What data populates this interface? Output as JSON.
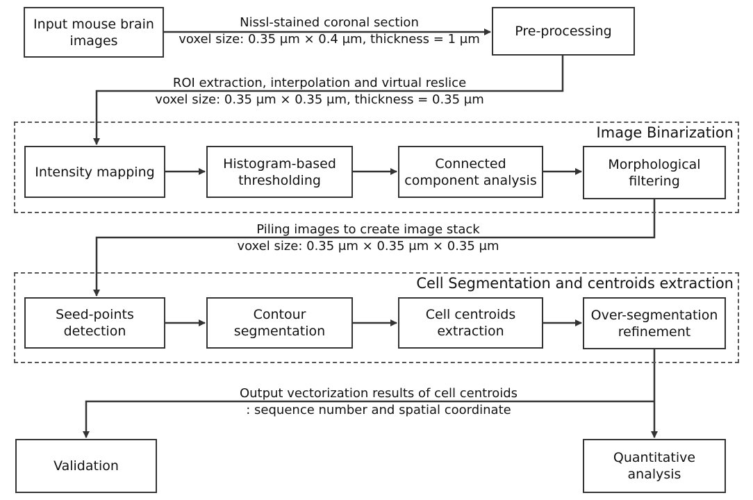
{
  "nodes": {
    "input": [
      "Input mouse brain",
      "images"
    ],
    "preprocessing": [
      "Pre-processing"
    ],
    "intensity": [
      "Intensity mapping"
    ],
    "histogram": [
      "Histogram-based",
      "thresholding"
    ],
    "connected": [
      "Connected",
      "component analysis"
    ],
    "morph": [
      "Morphological",
      "filtering"
    ],
    "seed": [
      "Seed-points",
      "detection"
    ],
    "contour": [
      "Contour",
      "segmentation"
    ],
    "centroids": [
      "Cell centroids",
      "extraction"
    ],
    "overseg": [
      "Over-segmentation",
      "refinement"
    ],
    "validation": [
      "Validation"
    ],
    "quantitative": [
      "Quantitative",
      "analysis"
    ]
  },
  "groups": {
    "binarization": "Image Binarization",
    "segmentation": "Cell Segmentation and centroids extraction"
  },
  "edge_labels": {
    "input_to_pre": [
      "Nissl-stained  coronal section",
      "voxel size: 0.35 μm × 0.4 μm, thickness = 1 μm"
    ],
    "pre_to_binarization": [
      "ROI extraction, interpolation and virtual reslice",
      "voxel size: 0.35 μm × 0.35 μm, thickness = 0.35 μm"
    ],
    "binarization_to_segmentation": [
      "Piling images to create image stack",
      "voxel size: 0.35 μm × 0.35 μm × 0.35 μm"
    ],
    "output": [
      "Output vectorization results of cell centroids",
      ": sequence number and spatial coordinate"
    ]
  }
}
